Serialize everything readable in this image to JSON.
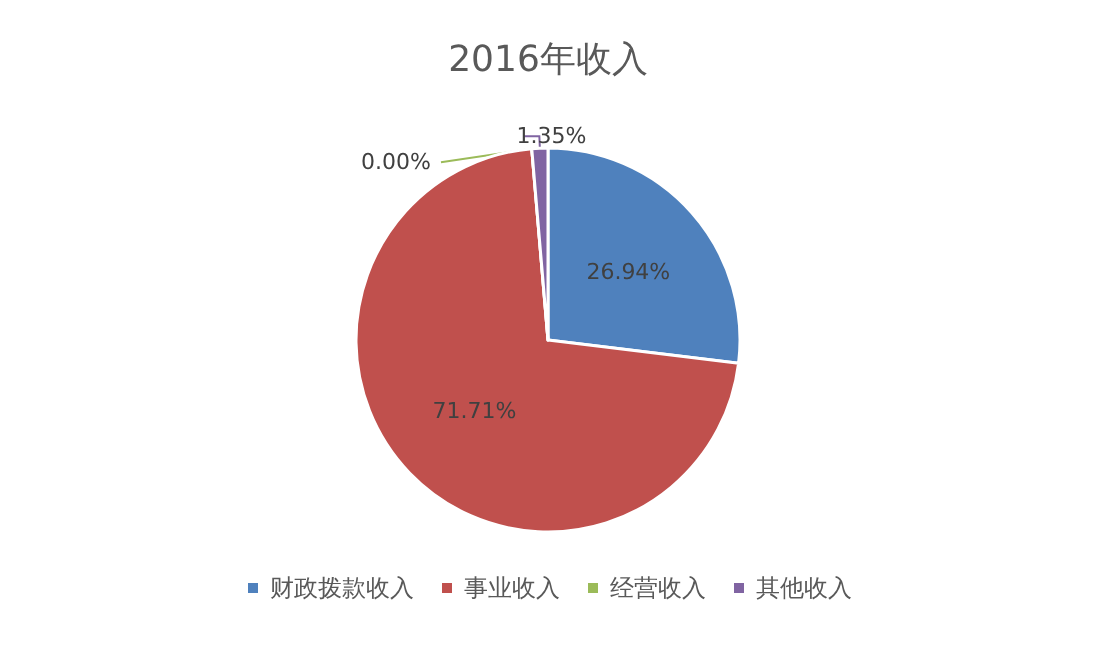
{
  "chart_data": {
    "type": "pie",
    "title": "2016年收入",
    "categories": [
      "财政拨款收入",
      "事业收入",
      "经营收入",
      "其他收入"
    ],
    "values": [
      26.94,
      71.71,
      0.0,
      1.35
    ],
    "colors": [
      "#4f81bd",
      "#c0504d",
      "#9bbb59",
      "#8064a2"
    ],
    "value_labels": [
      "26.94%",
      "71.71%",
      "0.00%",
      "1.35%"
    ],
    "legend": "bottom"
  }
}
